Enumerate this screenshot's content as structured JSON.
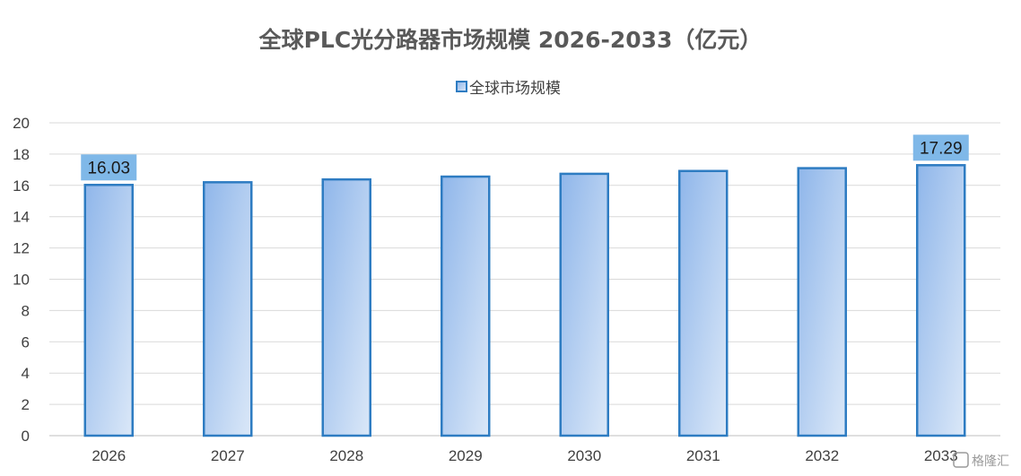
{
  "chart_data": {
    "type": "bar",
    "title": "全球PLC光分路器市场规模 2026-2033（亿元）",
    "categories": [
      "2026",
      "2027",
      "2028",
      "2029",
      "2030",
      "2031",
      "2032",
      "2033"
    ],
    "series": [
      {
        "name": "全球市场规模",
        "values": [
          16.03,
          16.2,
          16.38,
          16.56,
          16.74,
          16.92,
          17.1,
          17.29
        ]
      }
    ],
    "data_labels": [
      {
        "category": "2026",
        "text": "16.03"
      },
      {
        "category": "2033",
        "text": "17.29"
      }
    ],
    "ylim": [
      0,
      20
    ],
    "yticks": [
      0,
      2,
      4,
      6,
      8,
      10,
      12,
      14,
      16,
      18,
      20
    ],
    "xlabel": "",
    "ylabel": "",
    "grid": true,
    "legend_position": "top-center",
    "colors": {
      "bar_fill_top": "#8fb6ea",
      "bar_fill_bottom": "#dbe8f8",
      "bar_stroke": "#2e7cc2",
      "label_bg": "#7fb8e8",
      "grid": "#d9d9d9",
      "axis": "#bfbfbf"
    }
  },
  "watermark": "格隆汇"
}
